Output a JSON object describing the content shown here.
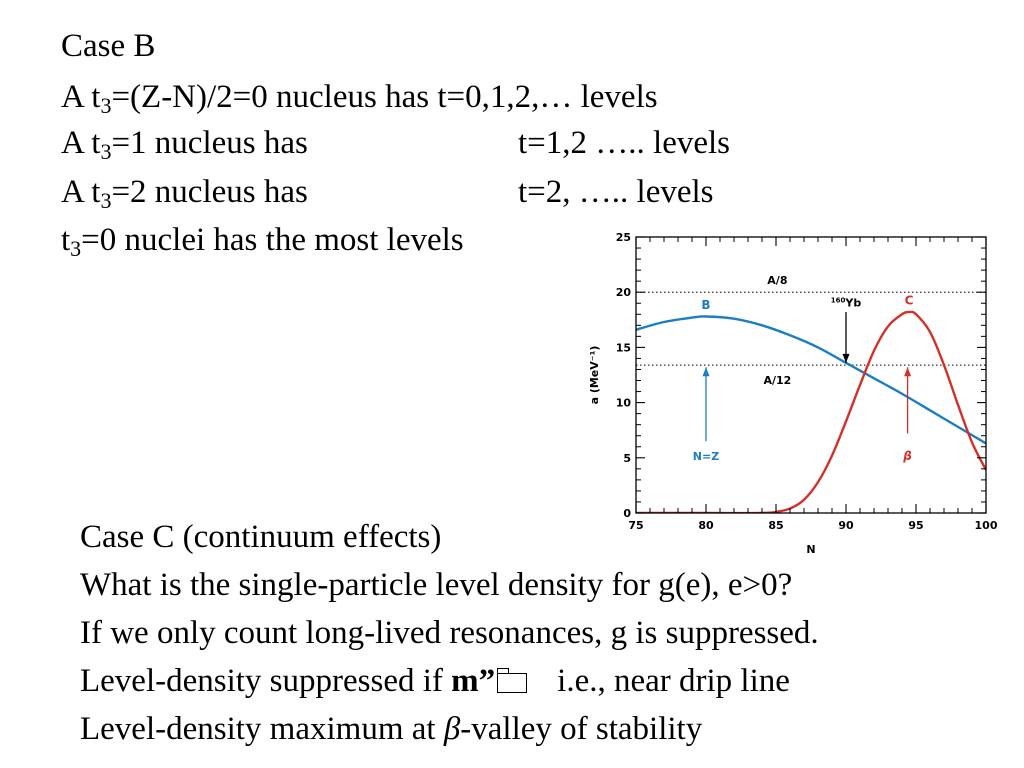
{
  "top": {
    "case_b": "Case B",
    "line1": {
      "pre": "A t",
      "sub": "3",
      "post": "=(Z-N)/2=0 nucleus has t=0,1,2,… levels"
    },
    "line2": {
      "pre": "A t",
      "sub": "3",
      "post": "=1 nucleus has",
      "right": "t=1,2 ….. levels"
    },
    "line3": {
      "pre": "A t",
      "sub": "3",
      "post": "=2 nucleus has",
      "right": "t=2, ….. levels"
    },
    "line4": {
      "pre": "t",
      "sub": "3",
      "post": "=0 nuclei has the most levels"
    }
  },
  "bottom": {
    "case_c": "Case C (continuum effects)",
    "line1": "What is the single-particle level density for g(e), e>0?",
    "line2": "If we only count long-lived resonances, g is suppressed.",
    "line3": {
      "pre": "Level-density suppressed if ",
      "symbol": "m”",
      "post": "i.e., near drip line"
    },
    "line4": {
      "pre": "Level-density maximum at ",
      "symbol": "β",
      "post": "-valley of stability"
    }
  },
  "chart_data": {
    "type": "line",
    "xlabel": "N",
    "ylabel": "a (MeV⁻¹)",
    "xlim": [
      75,
      100
    ],
    "ylim": [
      0,
      25
    ],
    "xticks": [
      75,
      80,
      85,
      90,
      95,
      100
    ],
    "yticks": [
      0,
      5,
      10,
      15,
      20,
      25
    ],
    "series": [
      {
        "name": "B",
        "color": "#1c7ec2",
        "x": [
          75,
          77,
          79,
          80,
          82,
          84,
          86,
          88,
          90,
          92,
          94,
          96,
          98,
          100
        ],
        "y": [
          16.6,
          17.3,
          17.7,
          17.8,
          17.6,
          17.0,
          16.1,
          15.0,
          13.6,
          12.2,
          10.8,
          9.3,
          7.8,
          6.3
        ]
      },
      {
        "name": "C",
        "color": "#d1312a",
        "x": [
          75,
          80,
          84,
          85,
          86,
          87,
          88,
          89,
          90,
          91,
          92,
          93,
          94,
          94.5,
          95,
          96,
          97,
          98,
          99,
          100
        ],
        "y": [
          0.0,
          0.0,
          0.0,
          0.1,
          0.4,
          1.2,
          2.8,
          5.2,
          8.3,
          11.6,
          14.7,
          16.9,
          18.0,
          18.2,
          18.0,
          16.4,
          13.4,
          9.8,
          6.4,
          3.9
        ]
      }
    ],
    "hlines": [
      {
        "y": 20.0,
        "label": "A/8"
      },
      {
        "y": 13.4,
        "label": "A/12"
      }
    ],
    "annotations": [
      {
        "label": "N=Z",
        "color": "#1c7ec2",
        "x": 80
      },
      {
        "label": "β",
        "color": "#d1312a",
        "x": 94.4
      },
      {
        "label_sup": "160",
        "label": "Yb",
        "color": "#000000",
        "x": 90
      }
    ]
  }
}
